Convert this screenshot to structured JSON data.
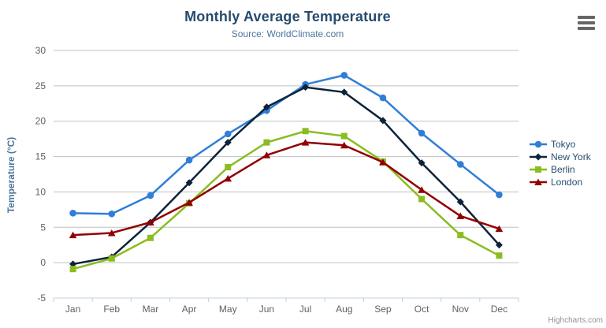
{
  "chart_data": {
    "type": "line",
    "title": "Monthly Average Temperature",
    "subtitle": "Source: WorldClimate.com",
    "categories": [
      "Jan",
      "Feb",
      "Mar",
      "Apr",
      "May",
      "Jun",
      "Jul",
      "Aug",
      "Sep",
      "Oct",
      "Nov",
      "Dec"
    ],
    "series": [
      {
        "name": "Tokyo",
        "color": "#2f7ed8",
        "marker": "circle",
        "values": [
          7.0,
          6.9,
          9.5,
          14.5,
          18.2,
          21.5,
          25.2,
          26.5,
          23.3,
          18.3,
          13.9,
          9.6
        ]
      },
      {
        "name": "New York",
        "color": "#0d233a",
        "marker": "diamond",
        "values": [
          -0.2,
          0.8,
          5.7,
          11.3,
          17.0,
          22.0,
          24.8,
          24.1,
          20.1,
          14.1,
          8.6,
          2.5
        ]
      },
      {
        "name": "Berlin",
        "color": "#8bbc21",
        "marker": "square",
        "values": [
          -0.9,
          0.6,
          3.5,
          8.4,
          13.5,
          17.0,
          18.6,
          17.9,
          14.3,
          9.0,
          3.9,
          1.0
        ]
      },
      {
        "name": "London",
        "color": "#910000",
        "marker": "triangle",
        "values": [
          3.9,
          4.2,
          5.7,
          8.5,
          11.9,
          15.2,
          17.0,
          16.6,
          14.2,
          10.3,
          6.6,
          4.8
        ]
      }
    ],
    "xlabel": "",
    "ylabel": "Temperature (°C)",
    "ylim": [
      -5,
      30
    ],
    "yticks": [
      -5,
      0,
      5,
      10,
      15,
      20,
      25,
      30
    ],
    "grid": true,
    "legend_position": "right",
    "colors": {
      "grid": "#C0C0C0",
      "axis_line": "#C0D0E0",
      "tick": "#C0D0E0",
      "title": "#274b6d",
      "subtitle": "#4d759e",
      "axis_label": "#606060",
      "axis_title": "#4d759e",
      "legend_text": "#274b6d",
      "credits": "#909090",
      "export_icon": "#666666",
      "background": "#ffffff"
    }
  },
  "export_menu": {
    "icon": "hamburger-icon"
  },
  "credits": {
    "label": "Highcharts.com"
  }
}
